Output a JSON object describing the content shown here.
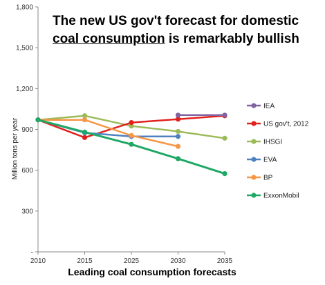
{
  "chart_data": {
    "type": "line",
    "title_part1": "The new US gov't forecast for domestic",
    "title_underlined": "coal consumption",
    "title_part2": " is remarkably bullish",
    "xlabel": "Leading coal consumption forecasts",
    "ylabel": "Million tons per year",
    "categories": [
      "2010",
      "2015",
      "2025",
      "2030",
      "2035"
    ],
    "ylim": [
      0,
      1800
    ],
    "yticks": [
      0,
      300,
      600,
      900,
      1200,
      1500,
      1800
    ],
    "ytick_labels": [
      "-",
      "300",
      "600",
      "900",
      "1,200",
      "1,500",
      "1,800"
    ],
    "legend_position": "right",
    "series": [
      {
        "name": "IEA",
        "color": "#8064a2",
        "values": [
          null,
          null,
          null,
          1005,
          1005
        ]
      },
      {
        "name": "US gov't, 2012",
        "color": "#e0221f",
        "values": [
          970,
          840,
          950,
          975,
          1000
        ]
      },
      {
        "name": "IHSGI",
        "color": "#9bbb59",
        "values": [
          970,
          1000,
          925,
          885,
          835
        ]
      },
      {
        "name": "EVA",
        "color": "#4f81bd",
        "values": [
          970,
          875,
          848,
          848,
          null
        ]
      },
      {
        "name": "BP",
        "color": "#f79646",
        "values": [
          970,
          970,
          855,
          775,
          null
        ]
      },
      {
        "name": "ExxonMobil",
        "color": "#1fa865",
        "values": [
          970,
          880,
          790,
          685,
          575
        ]
      }
    ]
  }
}
